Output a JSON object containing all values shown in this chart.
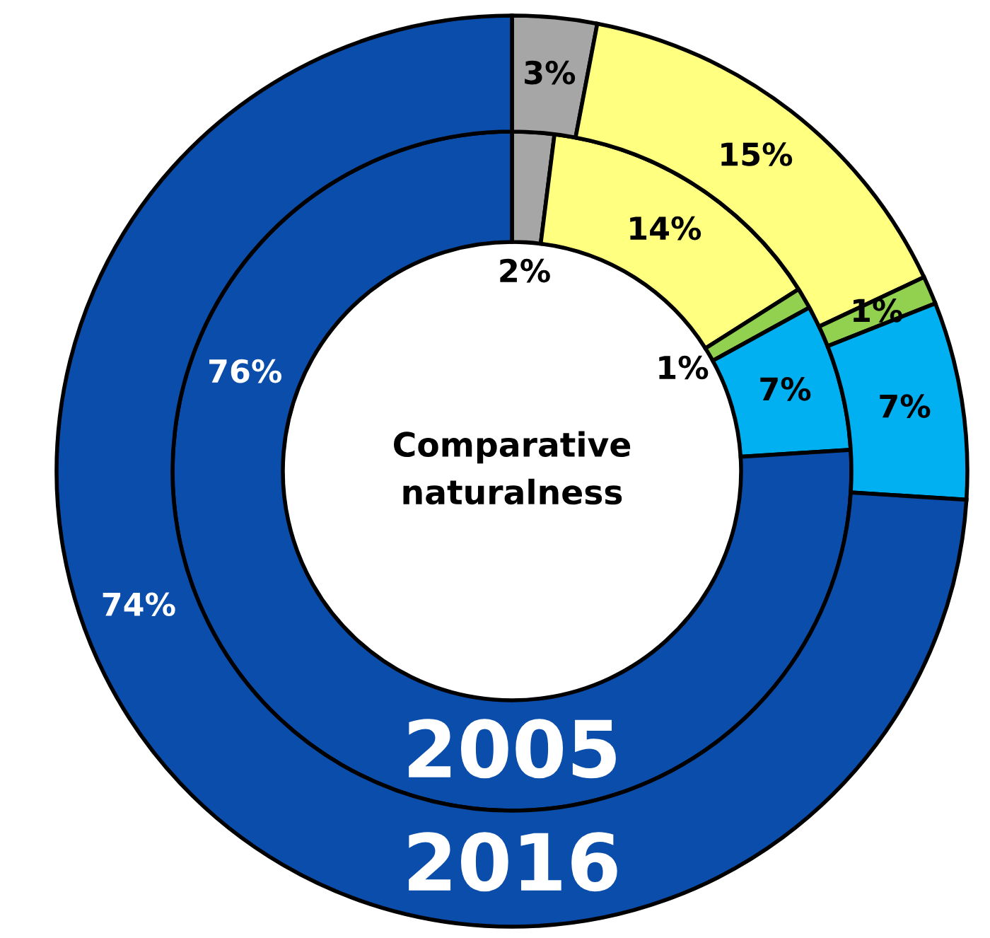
{
  "chart_data": {
    "type": "donut",
    "title": "Comparative naturalness",
    "categories": [
      null,
      null,
      null,
      null,
      null
    ],
    "series": [
      {
        "name": "2005",
        "colors": [
          "#a6a6a6",
          "#ffff80",
          "#92d050",
          "#00b0f0",
          "#0b4dab"
        ],
        "values": [
          2,
          14,
          1,
          7,
          76
        ],
        "value_labels": [
          "2%",
          "14%",
          "1%",
          "7%",
          "76%"
        ]
      },
      {
        "name": "2016",
        "colors": [
          "#a6a6a6",
          "#ffff80",
          "#92d050",
          "#00b0f0",
          "#0b4dab"
        ],
        "values": [
          3,
          15,
          1,
          7,
          74
        ],
        "value_labels": [
          "3%",
          "15%",
          "1%",
          "7%",
          "74%"
        ]
      }
    ],
    "legend": false
  }
}
